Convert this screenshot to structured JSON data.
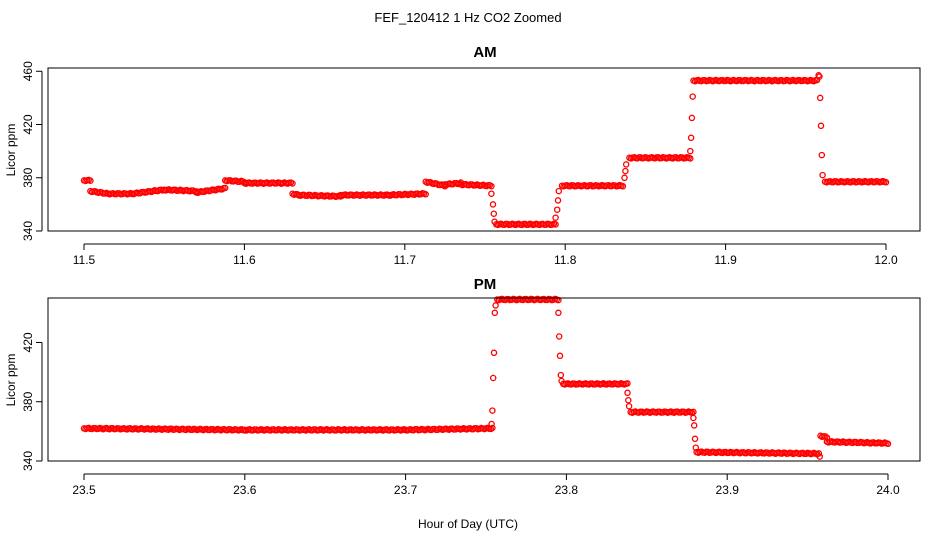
{
  "figure": {
    "title": "FEF_120412 1 Hz CO2 Zoomed",
    "xlabel": "Hour of Day (UTC)"
  },
  "chart_data": [
    {
      "type": "scatter",
      "title": "AM",
      "ylabel": "Licor ppm",
      "xlim": [
        11.5,
        12.0
      ],
      "ylim": [
        340,
        460
      ],
      "xticks": [
        "11.5",
        "11.6",
        "11.7",
        "11.8",
        "11.9",
        "12.0"
      ],
      "yticks": [
        "340",
        "380",
        "420",
        "460"
      ],
      "marker_color": "#ff0000",
      "segments": [
        {
          "x0": 11.5,
          "x1": 11.504,
          "y0": 378,
          "y1": 378
        },
        {
          "x0": 11.504,
          "x1": 11.515,
          "y0": 370,
          "y1": 368
        },
        {
          "x0": 11.515,
          "x1": 11.53,
          "y0": 368,
          "y1": 368
        },
        {
          "x0": 11.53,
          "x1": 11.55,
          "y0": 368,
          "y1": 371
        },
        {
          "x0": 11.55,
          "x1": 11.57,
          "y0": 371,
          "y1": 370
        },
        {
          "x0": 11.57,
          "x1": 11.588,
          "y0": 369,
          "y1": 372
        },
        {
          "x0": 11.588,
          "x1": 11.6,
          "y0": 378,
          "y1": 377
        },
        {
          "x0": 11.6,
          "x1": 11.63,
          "y0": 376,
          "y1": 376
        },
        {
          "x0": 11.63,
          "x1": 11.634,
          "y0": 368,
          "y1": 367
        },
        {
          "x0": 11.634,
          "x1": 11.66,
          "y0": 367,
          "y1": 366
        },
        {
          "x0": 11.66,
          "x1": 11.69,
          "y0": 367,
          "y1": 367
        },
        {
          "x0": 11.69,
          "x1": 11.713,
          "y0": 367,
          "y1": 368
        },
        {
          "x0": 11.713,
          "x1": 11.725,
          "y0": 377,
          "y1": 374
        },
        {
          "x0": 11.725,
          "x1": 11.735,
          "y0": 375,
          "y1": 376
        },
        {
          "x0": 11.735,
          "x1": 11.754,
          "y0": 375,
          "y1": 374
        },
        {
          "x0": 11.757,
          "x1": 11.794,
          "y0": 345,
          "y1": 345
        },
        {
          "x0": 11.798,
          "x1": 11.836,
          "y0": 374,
          "y1": 374
        },
        {
          "x0": 11.84,
          "x1": 11.878,
          "y0": 395,
          "y1": 395
        },
        {
          "x0": 11.88,
          "x1": 11.957,
          "y0": 453,
          "y1": 453
        },
        {
          "x0": 11.962,
          "x1": 12.0,
          "y0": 377,
          "y1": 377
        }
      ],
      "points": [
        {
          "x": 11.754,
          "y": 368
        },
        {
          "x": 11.755,
          "y": 360
        },
        {
          "x": 11.7555,
          "y": 353
        },
        {
          "x": 11.756,
          "y": 347
        },
        {
          "x": 11.794,
          "y": 350
        },
        {
          "x": 11.795,
          "y": 356
        },
        {
          "x": 11.7955,
          "y": 363
        },
        {
          "x": 11.796,
          "y": 370
        },
        {
          "x": 11.837,
          "y": 380
        },
        {
          "x": 11.8375,
          "y": 385
        },
        {
          "x": 11.838,
          "y": 390
        },
        {
          "x": 11.878,
          "y": 400
        },
        {
          "x": 11.8785,
          "y": 410
        },
        {
          "x": 11.879,
          "y": 425
        },
        {
          "x": 11.8795,
          "y": 441
        },
        {
          "x": 11.958,
          "y": 457
        },
        {
          "x": 11.9585,
          "y": 456
        },
        {
          "x": 11.959,
          "y": 440
        },
        {
          "x": 11.9595,
          "y": 419
        },
        {
          "x": 11.96,
          "y": 397
        },
        {
          "x": 11.9605,
          "y": 382
        }
      ]
    },
    {
      "type": "scatter",
      "title": "PM",
      "ylabel": "Licor ppm",
      "xlim": [
        23.5,
        24.0
      ],
      "ylim": [
        340,
        450
      ],
      "xticks": [
        "23.5",
        "23.6",
        "23.7",
        "23.8",
        "23.9",
        "24.0"
      ],
      "yticks": [
        "340",
        "380",
        "420"
      ],
      "marker_color": "#ff0000",
      "segments": [
        {
          "x0": 23.5,
          "x1": 23.6,
          "y0": 362,
          "y1": 361
        },
        {
          "x0": 23.6,
          "x1": 23.7,
          "y0": 361,
          "y1": 361
        },
        {
          "x0": 23.7,
          "x1": 23.754,
          "y0": 361,
          "y1": 362
        },
        {
          "x0": 23.757,
          "x1": 23.795,
          "y0": 449,
          "y1": 449
        },
        {
          "x0": 23.798,
          "x1": 23.838,
          "y0": 392,
          "y1": 392
        },
        {
          "x0": 23.84,
          "x1": 23.879,
          "y0": 373,
          "y1": 373
        },
        {
          "x0": 23.881,
          "x1": 23.957,
          "y0": 346,
          "y1": 345
        },
        {
          "x0": 23.958,
          "x1": 23.962,
          "y0": 357,
          "y1": 356
        },
        {
          "x0": 23.962,
          "x1": 24.0,
          "y0": 353,
          "y1": 352
        }
      ],
      "points": [
        {
          "x": 23.7535,
          "y": 365
        },
        {
          "x": 23.754,
          "y": 374
        },
        {
          "x": 23.7545,
          "y": 396
        },
        {
          "x": 23.755,
          "y": 413
        },
        {
          "x": 23.7555,
          "y": 440
        },
        {
          "x": 23.756,
          "y": 445
        },
        {
          "x": 23.795,
          "y": 440
        },
        {
          "x": 23.7955,
          "y": 424
        },
        {
          "x": 23.796,
          "y": 411
        },
        {
          "x": 23.7965,
          "y": 398
        },
        {
          "x": 23.797,
          "y": 394
        },
        {
          "x": 23.838,
          "y": 386
        },
        {
          "x": 23.8385,
          "y": 381
        },
        {
          "x": 23.839,
          "y": 377
        },
        {
          "x": 23.879,
          "y": 369
        },
        {
          "x": 23.8795,
          "y": 364
        },
        {
          "x": 23.88,
          "y": 355
        },
        {
          "x": 23.8805,
          "y": 349
        },
        {
          "x": 23.9575,
          "y": 343
        }
      ]
    }
  ]
}
